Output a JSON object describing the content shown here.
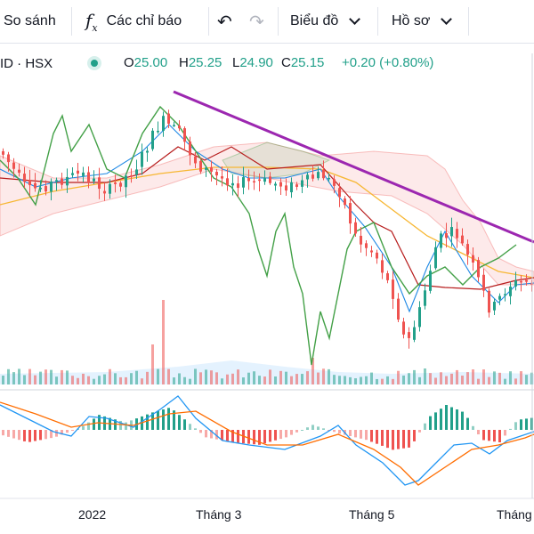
{
  "toolbar": {
    "compare_label": "So sánh",
    "indicators_label": "Các chỉ báo",
    "chart_type_label": "Biểu đồ",
    "profile_label": "Hồ sơ"
  },
  "legend": {
    "symbol": "ID · HSX",
    "open_key": "O",
    "open": "25.00",
    "high_key": "H",
    "high": "25.25",
    "low_key": "L",
    "low": "24.90",
    "close_key": "C",
    "close": "25.15",
    "change": "+0.20 (+0.80%)"
  },
  "icons": {
    "indicators": "fx-icon",
    "undo": "undo-icon",
    "redo": "redo-icon",
    "status": "market-status-dot-icon"
  },
  "colors": {
    "up": "#22a08a",
    "down": "#ef5350",
    "trendline": "#9c27b0",
    "ichimoku_lagging": "#43a047",
    "ma_orange": "#f7b733",
    "macd": "#2196f3",
    "signal": "#ff6d00"
  },
  "chart_data": {
    "type": "candlestick",
    "x_ticks": [
      "2022",
      "Tháng 3",
      "Tháng 5",
      "Tháng"
    ],
    "last_close": 25.15,
    "overlays": [
      "Ichimoku cloud",
      "moving average",
      "trendline"
    ],
    "lower_panes": [
      "volume",
      "MACD histogram",
      "MACD line",
      "signal line"
    ]
  }
}
